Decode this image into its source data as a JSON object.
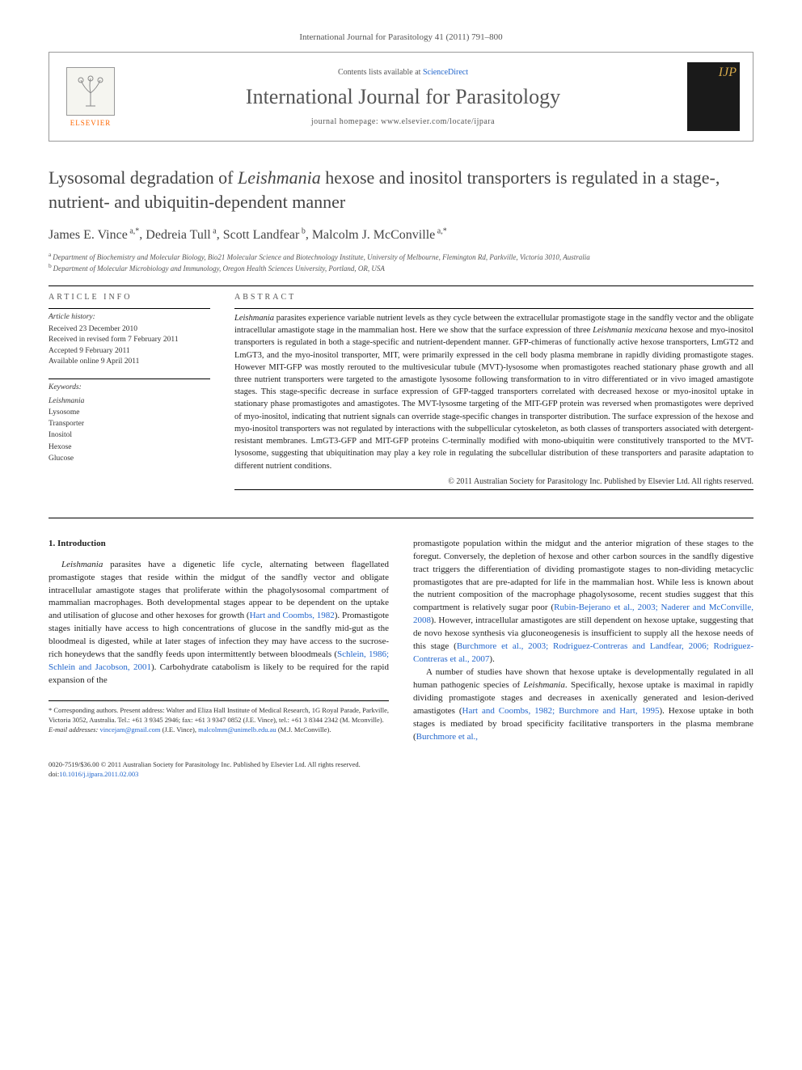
{
  "journal_ref": "International Journal for Parasitology 41 (2011) 791–800",
  "header": {
    "publisher_name": "ELSEVIER",
    "contents_prefix": "Contents lists available at ",
    "contents_link": "ScienceDirect",
    "journal_title": "International Journal for Parasitology",
    "homepage_prefix": "journal homepage: ",
    "homepage_url": "www.elsevier.com/locate/ijpara",
    "cover_label": "IJP"
  },
  "title_line1": "Lysosomal degradation of ",
  "title_italic": "Leishmania",
  "title_line2": " hexose and inositol transporters is regulated in a stage-, nutrient- and ubiquitin-dependent manner",
  "authors": [
    {
      "name": "James E. Vince",
      "marks": "a,*"
    },
    {
      "name": "Dedreia Tull",
      "marks": "a"
    },
    {
      "name": "Scott Landfear",
      "marks": "b"
    },
    {
      "name": "Malcolm J. McConville",
      "marks": "a,*"
    }
  ],
  "affiliations": [
    {
      "mark": "a",
      "text": "Department of Biochemistry and Molecular Biology, Bio21 Molecular Science and Biotechnology Institute, University of Melbourne, Flemington Rd, Parkville, Victoria 3010, Australia"
    },
    {
      "mark": "b",
      "text": "Department of Molecular Microbiology and Immunology, Oregon Health Sciences University, Portland, OR, USA"
    }
  ],
  "article_info": {
    "heading": "ARTICLE INFO",
    "history_heading": "Article history:",
    "history": [
      "Received 23 December 2010",
      "Received in revised form 7 February 2011",
      "Accepted 9 February 2011",
      "Available online 9 April 2011"
    ],
    "keywords_heading": "Keywords:",
    "keywords": [
      "Leishmania",
      "Lysosome",
      "Transporter",
      "Inositol",
      "Hexose",
      "Glucose"
    ]
  },
  "abstract": {
    "heading": "ABSTRACT",
    "text": "Leishmania parasites experience variable nutrient levels as they cycle between the extracellular promastigote stage in the sandfly vector and the obligate intracellular amastigote stage in the mammalian host. Here we show that the surface expression of three Leishmania mexicana hexose and myo-inositol transporters is regulated in both a stage-specific and nutrient-dependent manner. GFP-chimeras of functionally active hexose transporters, LmGT2 and LmGT3, and the myo-inositol transporter, MIT, were primarily expressed in the cell body plasma membrane in rapidly dividing promastigote stages. However MIT-GFP was mostly rerouted to the multivesicular tubule (MVT)-lysosome when promastigotes reached stationary phase growth and all three nutrient transporters were targeted to the amastigote lysosome following transformation to in vitro differentiated or in vivo imaged amastigote stages. This stage-specific decrease in surface expression of GFP-tagged transporters correlated with decreased hexose or myo-inositol uptake in stationary phase promastigotes and amastigotes. The MVT-lysosme targeting of the MIT-GFP protein was reversed when promastigotes were deprived of myo-inositol, indicating that nutrient signals can override stage-specific changes in transporter distribution. The surface expression of the hexose and myo-inositol transporters was not regulated by interactions with the subpellicular cytoskeleton, as both classes of transporters associated with detergent-resistant membranes. LmGT3-GFP and MIT-GFP proteins C-terminally modified with mono-ubiquitin were constitutively transported to the MVT-lysosome, suggesting that ubiquitination may play a key role in regulating the subcellular distribution of these transporters and parasite adaptation to different nutrient conditions.",
    "copyright": "© 2011 Australian Society for Parasitology Inc. Published by Elsevier Ltd. All rights reserved."
  },
  "body": {
    "section_heading": "1. Introduction",
    "col1_p1a": "Leishmania",
    "col1_p1b": " parasites have a digenetic life cycle, alternating between flagellated promastigote stages that reside within the midgut of the sandfly vector and obligate intracellular amastigote stages that proliferate within the phagolysosomal compartment of mammalian macrophages. Both developmental stages appear to be dependent on the uptake and utilisation of glucose and other hexoses for growth (",
    "col1_ref1": "Hart and Coombs, 1982",
    "col1_p1c": "). Promastigote stages initially have access to high concentrations of glucose in the sandfly mid-gut as the bloodmeal is digested, while at later stages of infection they may have access to the sucrose-rich honeydews that the sandfly feeds upon intermittently between bloodmeals (",
    "col1_ref2": "Schlein, 1986; Schlein and Jacobson, 2001",
    "col1_p1d": "). Carbohydrate catabolism is likely to be required for the rapid expansion of the",
    "col2_p1a": "promastigote population within the midgut and the anterior migration of these stages to the foregut. Conversely, the depletion of hexose and other carbon sources in the sandfly digestive tract triggers the differentiation of dividing promastigote stages to non-dividing metacyclic promastigotes that are pre-adapted for life in the mammalian host. While less is known about the nutrient composition of the macrophage phagolysosome, recent studies suggest that this compartment is relatively sugar poor (",
    "col2_ref1": "Rubin-Bejerano et al., 2003; Naderer and McConville, 2008",
    "col2_p1b": "). However, intracellular amastigotes are still dependent on hexose uptake, suggesting that de novo hexose synthesis via gluconeogenesis is insufficient to supply all the hexose needs of this stage (",
    "col2_ref2": "Burchmore et al., 2003; Rodriguez-Contreras and Landfear, 2006; Rodriguez-Contreras et al., 2007",
    "col2_p1c": ").",
    "col2_p2a": "A number of studies have shown that hexose uptake is developmentally regulated in all human pathogenic species of ",
    "col2_p2italic": "Leishmania",
    "col2_p2b": ". Specifically, hexose uptake is maximal in rapidly dividing promastigote stages and decreases in axenically generated and lesion-derived amastigotes (",
    "col2_ref3": "Hart and Coombs, 1982; Burchmore and Hart, 1995",
    "col2_p2c": "). Hexose uptake in both stages is mediated by broad specificity facilitative transporters in the plasma membrane (",
    "col2_ref4": "Burchmore et al.,"
  },
  "footnotes": {
    "corr": "* Corresponding authors. Present address: Walter and Eliza Hall Institute of Medical Research, 1G Royal Parade, Parkville, Victoria 3052, Australia. Tel.: +61 3 9345 2946; fax: +61 3 9347 0852 (J.E. Vince), tel.: +61 3 8344 2342 (M. Mconville).",
    "email_label": "E-mail addresses: ",
    "email1": "vincejam@gmail.com",
    "email1_who": " (J.E. Vince), ",
    "email2": "malcolmm@unimelb.edu.au",
    "email2_who": " (M.J. McConville)."
  },
  "footer": {
    "issn": "0020-7519/$36.00 © 2011 Australian Society for Parasitology Inc. Published by Elsevier Ltd. All rights reserved.",
    "doi_label": "doi:",
    "doi": "10.1016/j.ijpara.2011.02.003"
  },
  "colors": {
    "link": "#2266cc",
    "publisher_orange": "#ff6600",
    "title_grey": "#444444",
    "text": "#222222",
    "rule": "#000000"
  }
}
